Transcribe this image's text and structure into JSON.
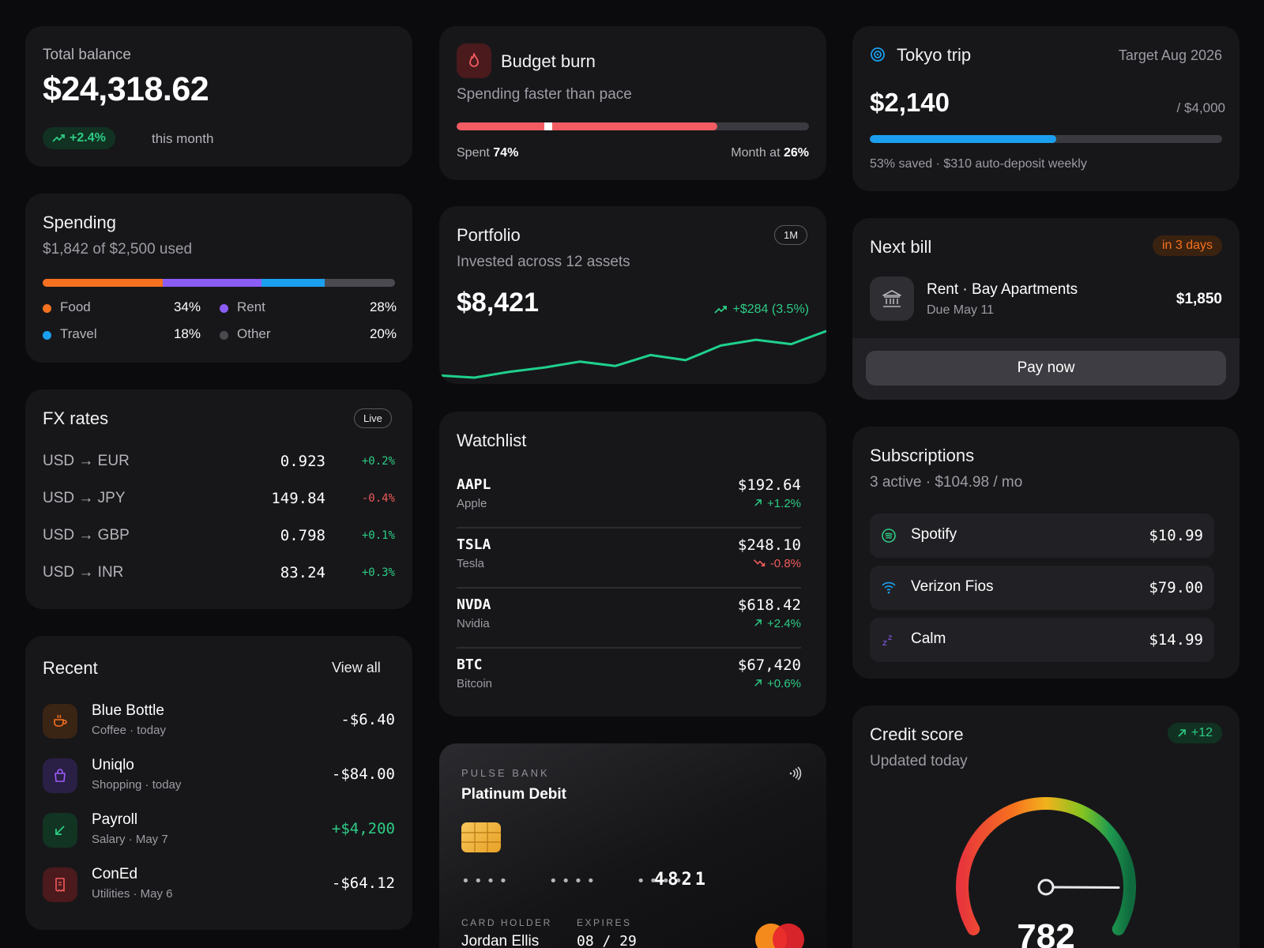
{
  "balance": {
    "label": "Total balance",
    "amount": "$24,318.62",
    "change": "+2.4%",
    "period": "this month"
  },
  "spending": {
    "title": "Spending",
    "subtitle": "$1,842 of $2,500 used",
    "segments": [
      {
        "name": "Food",
        "pct": "34%",
        "value": 34,
        "color": "#f6711f"
      },
      {
        "name": "Rent",
        "pct": "28%",
        "value": 28,
        "color": "#8b5cf6"
      },
      {
        "name": "Travel",
        "pct": "18%",
        "value": 18,
        "color": "#1ba0ef"
      },
      {
        "name": "Other",
        "pct": "20%",
        "value": 20,
        "color": "#4a4a50"
      }
    ]
  },
  "fx": {
    "title": "FX rates",
    "badge": "Live",
    "rows": [
      {
        "pair": "USD → EUR",
        "rate": "0.923",
        "change": "+0.2%",
        "dir": "up"
      },
      {
        "pair": "USD → JPY",
        "rate": "149.84",
        "change": "-0.4%",
        "dir": "down"
      },
      {
        "pair": "USD → GBP",
        "rate": "0.798",
        "change": "+0.1%",
        "dir": "up"
      },
      {
        "pair": "USD → INR",
        "rate": "83.24",
        "change": "+0.3%",
        "dir": "up"
      }
    ]
  },
  "recent": {
    "title": "Recent",
    "view_all": "View all",
    "items": [
      {
        "name": "Blue Bottle",
        "meta": "Coffee · today",
        "amount": "-$6.40",
        "icon": "coffee-icon",
        "color": "#f6711f",
        "bg": "#3a2414",
        "dir": "out"
      },
      {
        "name": "Uniqlo",
        "meta": "Shopping · today",
        "amount": "-$84.00",
        "icon": "shopping-bag-icon",
        "color": "#9b5cf6",
        "bg": "#2a1f45",
        "dir": "out"
      },
      {
        "name": "Payroll",
        "meta": "Salary · May 7",
        "amount": "+$4,200",
        "icon": "arrow-down-left-icon",
        "color": "#2ecc85",
        "bg": "#123423",
        "dir": "in"
      },
      {
        "name": "ConEd",
        "meta": "Utilities · May 6",
        "amount": "-$64.12",
        "icon": "receipt-icon",
        "color": "#ef5a5a",
        "bg": "#4a1a1c",
        "dir": "out"
      }
    ]
  },
  "budget": {
    "title": "Budget burn",
    "subtitle": "Spending faster than pace",
    "spent_label": "Spent",
    "spent_pct": "74%",
    "spent_value": 0.74,
    "month_label": "Month at",
    "month_pct": "26%",
    "month_value": 0.26,
    "color": "#f25c62"
  },
  "portfolio": {
    "title": "Portfolio",
    "range": "1M",
    "subtitle": "Invested across 12 assets",
    "value": "$8,421",
    "change": "+$284 (3.5%)",
    "series": [
      0.5,
      0.2,
      1.0,
      1.6,
      2.4,
      1.8,
      3.3,
      2.6,
      4.6,
      5.4,
      4.8,
      6.6
    ]
  },
  "watchlist": {
    "title": "Watchlist",
    "rows": [
      {
        "ticker": "AAPL",
        "name": "Apple",
        "price": "$192.64",
        "change": "+1.2%",
        "dir": "up"
      },
      {
        "ticker": "TSLA",
        "name": "Tesla",
        "price": "$248.10",
        "change": "-0.8%",
        "dir": "down"
      },
      {
        "ticker": "NVDA",
        "name": "Nvidia",
        "price": "$618.42",
        "change": "+2.4%",
        "dir": "up"
      },
      {
        "ticker": "BTC",
        "name": "Bitcoin",
        "price": "$67,420",
        "change": "+0.6%",
        "dir": "up"
      }
    ]
  },
  "card": {
    "bank": "PULSE BANK",
    "product": "Platinum Debit",
    "masked": "••••   ••••   ••••",
    "last4": "4821",
    "holder_label": "CARD HOLDER",
    "holder": "Jordan Ellis",
    "expires_label": "EXPIRES",
    "expires": "08 / 29"
  },
  "goal": {
    "title": "Tokyo trip",
    "target": "Target Aug 2026",
    "saved": "$2,140",
    "goal": "/ $4,000",
    "progress": 0.53,
    "note": "53% saved · $310 auto-deposit weekly",
    "color": "#1ba0ef"
  },
  "bill": {
    "title": "Next bill",
    "due_badge": "in 3 days",
    "payee": "Rent · Bay Apartments",
    "due": "Due May 11",
    "amount": "$1,850",
    "pay_label": "Pay now"
  },
  "subscriptions": {
    "title": "Subscriptions",
    "subtitle": "3 active · $104.98 / mo",
    "items": [
      {
        "name": "Spotify",
        "price": "$10.99",
        "icon": "spotify-icon",
        "color": "#2ecc85"
      },
      {
        "name": "Verizon Fios",
        "price": "$79.00",
        "icon": "wifi-icon",
        "color": "#1ba0ef"
      },
      {
        "name": "Calm",
        "price": "$14.99",
        "icon": "sleep-icon",
        "color": "#8b5cf6"
      }
    ]
  },
  "credit": {
    "title": "Credit score",
    "change": "+12",
    "subtitle": "Updated today",
    "score": "782",
    "score_value": 782,
    "min": 300,
    "max": 850
  }
}
